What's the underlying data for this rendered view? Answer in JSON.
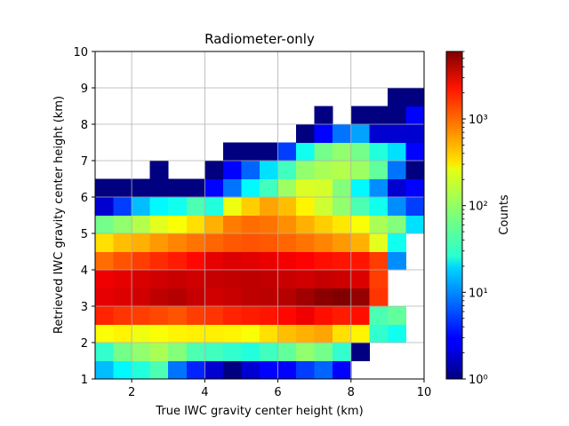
{
  "chart_data": {
    "type": "heatmap",
    "title": "Radiometer-only",
    "xlabel": "True IWC gravity center height (km)",
    "ylabel": "Retrieved IWC gravity center height (km)",
    "xlim": [
      1,
      10
    ],
    "ylim": [
      1,
      10
    ],
    "x_ticks": [
      "2",
      "4",
      "6",
      "8",
      "10"
    ],
    "y_ticks": [
      "1",
      "2",
      "3",
      "4",
      "5",
      "6",
      "7",
      "8",
      "9",
      "10"
    ],
    "grid": true,
    "colormap": "jet",
    "colorbar": {
      "label": "Counts",
      "scale": "log",
      "range": [
        1,
        6000
      ],
      "tick_values": [
        1,
        10,
        100,
        1000
      ],
      "tick_labels": [
        "10⁰",
        "10¹",
        "10²",
        "10³"
      ]
    },
    "bin_width": 0.5,
    "x_bin_starts": [
      1.0,
      1.5,
      2.0,
      2.5,
      3.0,
      3.5,
      4.0,
      4.5,
      5.0,
      5.5,
      6.0,
      6.5,
      7.0,
      7.5,
      8.0,
      8.5,
      9.0,
      9.5
    ],
    "y_bin_starts": [
      1.0,
      1.5,
      2.0,
      2.5,
      3.0,
      3.5,
      4.0,
      4.5,
      5.0,
      5.5,
      6.0,
      6.5,
      7.0,
      7.5,
      8.0,
      8.5
    ],
    "counts": [
      [
        15,
        25,
        35,
        50,
        8,
        4,
        2,
        1,
        2,
        3,
        3,
        5,
        7,
        3,
        0,
        0,
        0,
        0
      ],
      [
        40,
        70,
        90,
        110,
        80,
        50,
        45,
        40,
        35,
        45,
        60,
        90,
        70,
        40,
        1,
        0,
        0,
        0
      ],
      [
        220,
        250,
        200,
        220,
        250,
        260,
        260,
        250,
        220,
        300,
        400,
        450,
        500,
        300,
        250,
        40,
        30,
        0
      ],
      [
        1500,
        1300,
        1200,
        1100,
        1000,
        1200,
        1300,
        1500,
        1600,
        1700,
        1900,
        2300,
        1800,
        1600,
        1800,
        50,
        60,
        0
      ],
      [
        2500,
        2700,
        3000,
        3500,
        3800,
        3300,
        3000,
        3200,
        3500,
        3600,
        3800,
        4500,
        5500,
        6000,
        5000,
        1300,
        0,
        0
      ],
      [
        2300,
        2500,
        2800,
        3000,
        3200,
        3000,
        3300,
        3400,
        3500,
        3400,
        3200,
        3000,
        3300,
        3100,
        2700,
        1200,
        0,
        0
      ],
      [
        800,
        1000,
        1200,
        1400,
        1600,
        1900,
        2500,
        2700,
        2600,
        2400,
        2200,
        2000,
        1800,
        1700,
        1700,
        1200,
        10,
        0
      ],
      [
        300,
        400,
        450,
        550,
        650,
        750,
        850,
        950,
        1000,
        950,
        850,
        750,
        650,
        550,
        450,
        180,
        30,
        0
      ],
      [
        70,
        90,
        120,
        180,
        220,
        300,
        450,
        700,
        800,
        750,
        600,
        450,
        350,
        280,
        220,
        110,
        80,
        20
      ],
      [
        2,
        5,
        15,
        25,
        30,
        50,
        35,
        200,
        350,
        500,
        400,
        250,
        150,
        90,
        50,
        30,
        10,
        5
      ],
      [
        1,
        1,
        1,
        1,
        1,
        1,
        3,
        8,
        25,
        45,
        100,
        170,
        160,
        80,
        25,
        10,
        2,
        3
      ],
      [
        0,
        0,
        0,
        1,
        0,
        0,
        1,
        3,
        7,
        20,
        45,
        90,
        110,
        120,
        100,
        60,
        8,
        1
      ],
      [
        0,
        0,
        0,
        0,
        0,
        0,
        0,
        1,
        1,
        1,
        5,
        30,
        70,
        90,
        70,
        35,
        20,
        3
      ],
      [
        0,
        0,
        0,
        0,
        0,
        0,
        0,
        0,
        0,
        0,
        0,
        1,
        3,
        8,
        12,
        2,
        2,
        2
      ],
      [
        0,
        0,
        0,
        0,
        0,
        0,
        0,
        0,
        0,
        0,
        0,
        0,
        1,
        0,
        1,
        1,
        1,
        3
      ],
      [
        0,
        0,
        0,
        0,
        0,
        0,
        0,
        0,
        0,
        0,
        0,
        0,
        0,
        0,
        0,
        0,
        1,
        1
      ]
    ]
  }
}
